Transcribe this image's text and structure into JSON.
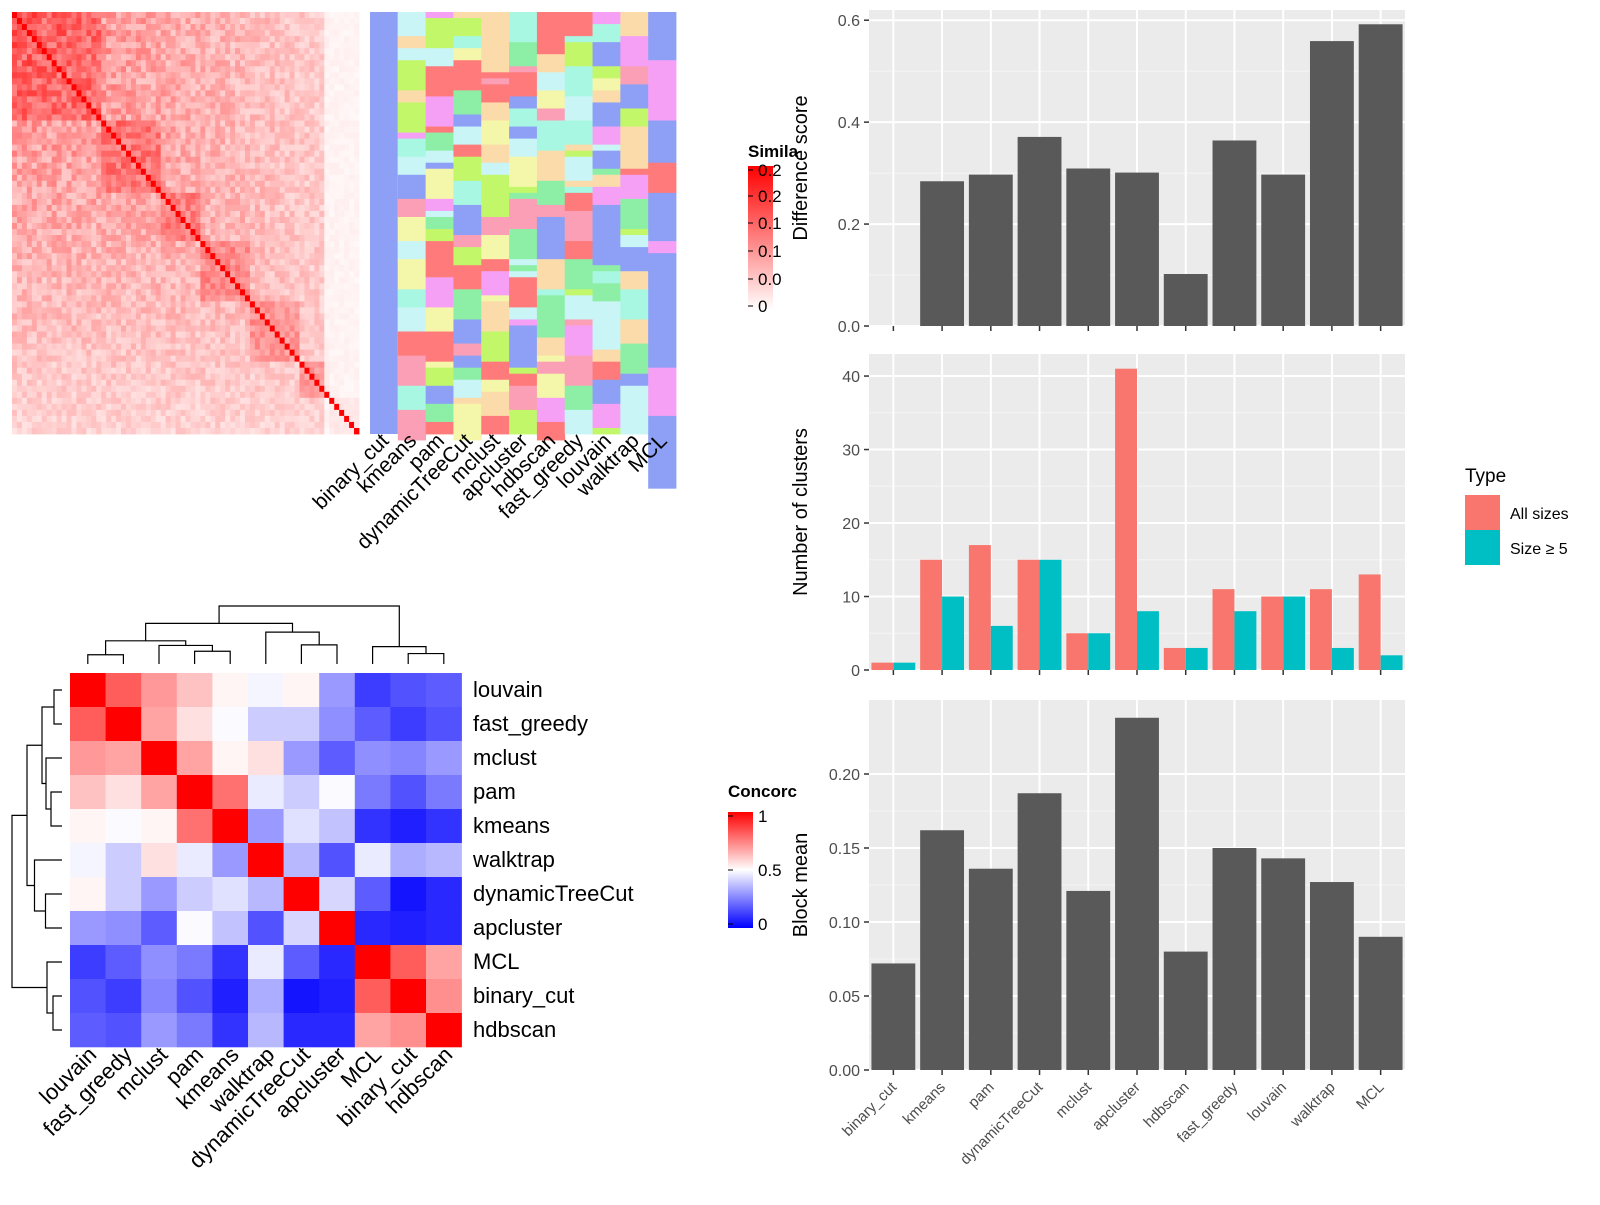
{
  "methods": [
    "binary_cut",
    "kmeans",
    "pam",
    "dynamicTreeCut",
    "mclust",
    "apcluster",
    "hdbscan",
    "fast_greedy",
    "louvain",
    "walktrap",
    "MCL"
  ],
  "colors": {
    "panel_bg": "#EBEBEB",
    "bar_dark": "#595959",
    "all_sizes": "#F8766D",
    "size_ge5": "#00BFC4",
    "heat_high": "#FF0000",
    "conc_low": "#0000FF",
    "cluster_palette": [
      "#8DA0F5",
      "#C2F76A",
      "#FBDBA9",
      "#FA9FB5",
      "#A8F7E2",
      "#F4F7A9",
      "#8DEFA6",
      "#FF7A7A",
      "#F5A0F5",
      "#C9F5F7"
    ]
  },
  "similarity_legend": {
    "title": "Simila",
    "ticks": [
      "0.2",
      "0.2",
      "0.1",
      "0.1",
      "0.0",
      "0"
    ]
  },
  "concordance_legend": {
    "title": "Concorc",
    "ticks": [
      "1",
      "0.5",
      "0"
    ]
  },
  "concordance": {
    "order": [
      "louvain",
      "fast_greedy",
      "mclust",
      "pam",
      "kmeans",
      "walktrap",
      "dynamicTreeCut",
      "apcluster",
      "MCL",
      "binary_cut",
      "hdbscan"
    ],
    "matrix": [
      [
        1.0,
        0.82,
        0.7,
        0.62,
        0.52,
        0.48,
        0.52,
        0.3,
        0.12,
        0.16,
        0.18
      ],
      [
        0.82,
        1.0,
        0.68,
        0.56,
        0.49,
        0.4,
        0.4,
        0.28,
        0.18,
        0.12,
        0.16
      ],
      [
        0.7,
        0.68,
        1.0,
        0.68,
        0.52,
        0.56,
        0.3,
        0.18,
        0.28,
        0.26,
        0.3
      ],
      [
        0.62,
        0.56,
        0.68,
        1.0,
        0.78,
        0.46,
        0.4,
        0.49,
        0.24,
        0.16,
        0.24
      ],
      [
        0.52,
        0.49,
        0.52,
        0.78,
        1.0,
        0.3,
        0.44,
        0.38,
        0.1,
        0.06,
        0.1
      ],
      [
        0.48,
        0.4,
        0.56,
        0.46,
        0.3,
        1.0,
        0.36,
        0.16,
        0.46,
        0.34,
        0.36
      ],
      [
        0.52,
        0.4,
        0.3,
        0.4,
        0.44,
        0.36,
        1.0,
        0.42,
        0.18,
        0.04,
        0.08
      ],
      [
        0.3,
        0.28,
        0.18,
        0.49,
        0.38,
        0.16,
        0.42,
        1.0,
        0.08,
        0.06,
        0.08
      ],
      [
        0.12,
        0.18,
        0.28,
        0.24,
        0.1,
        0.46,
        0.18,
        0.08,
        1.0,
        0.82,
        0.68
      ],
      [
        0.16,
        0.12,
        0.26,
        0.16,
        0.06,
        0.34,
        0.04,
        0.06,
        0.82,
        1.0,
        0.72
      ],
      [
        0.18,
        0.16,
        0.3,
        0.24,
        0.1,
        0.36,
        0.08,
        0.08,
        0.68,
        0.72,
        1.0
      ]
    ]
  },
  "chart_data": [
    {
      "type": "bar",
      "ylabel": "Difference score",
      "categories": [
        "binary_cut",
        "kmeans",
        "pam",
        "dynamicTreeCut",
        "mclust",
        "apcluster",
        "hdbscan",
        "fast_greedy",
        "louvain",
        "walktrap",
        "MCL"
      ],
      "values": [
        0,
        0.284,
        0.297,
        0.371,
        0.309,
        0.301,
        0.102,
        0.364,
        0.297,
        0.559,
        0.592
      ],
      "ylim": [
        0,
        0.62
      ],
      "yticks": [
        0.0,
        0.2,
        0.4,
        0.6
      ],
      "ytick_labels": [
        "0.0",
        "0.2",
        "0.4",
        "0.6"
      ]
    },
    {
      "type": "bar",
      "ylabel": "Number of clusters",
      "categories": [
        "binary_cut",
        "kmeans",
        "pam",
        "dynamicTreeCut",
        "mclust",
        "apcluster",
        "hdbscan",
        "fast_greedy",
        "louvain",
        "walktrap",
        "MCL"
      ],
      "legend_title": "Type",
      "series": [
        {
          "name": "All sizes",
          "values": [
            1,
            15,
            17,
            15,
            5,
            41,
            3,
            11,
            10,
            11,
            13
          ]
        },
        {
          "name": "Size ≥ 5",
          "values": [
            1,
            10,
            6,
            15,
            5,
            8,
            3,
            8,
            10,
            3,
            2
          ]
        }
      ],
      "ylim": [
        0,
        43
      ],
      "yticks": [
        0,
        10,
        20,
        30,
        40
      ],
      "ytick_labels": [
        "0",
        "10",
        "20",
        "30",
        "40"
      ]
    },
    {
      "type": "bar",
      "ylabel": "Block mean",
      "categories": [
        "binary_cut",
        "kmeans",
        "pam",
        "dynamicTreeCut",
        "mclust",
        "apcluster",
        "hdbscan",
        "fast_greedy",
        "louvain",
        "walktrap",
        "MCL"
      ],
      "values": [
        0.072,
        0.162,
        0.136,
        0.187,
        0.121,
        0.238,
        0.08,
        0.15,
        0.143,
        0.127,
        0.09
      ],
      "ylim": [
        0,
        0.25
      ],
      "yticks": [
        0.0,
        0.05,
        0.1,
        0.15,
        0.2
      ],
      "ytick_labels": [
        "0.00",
        "0.05",
        "0.10",
        "0.15",
        "0.20"
      ]
    }
  ]
}
